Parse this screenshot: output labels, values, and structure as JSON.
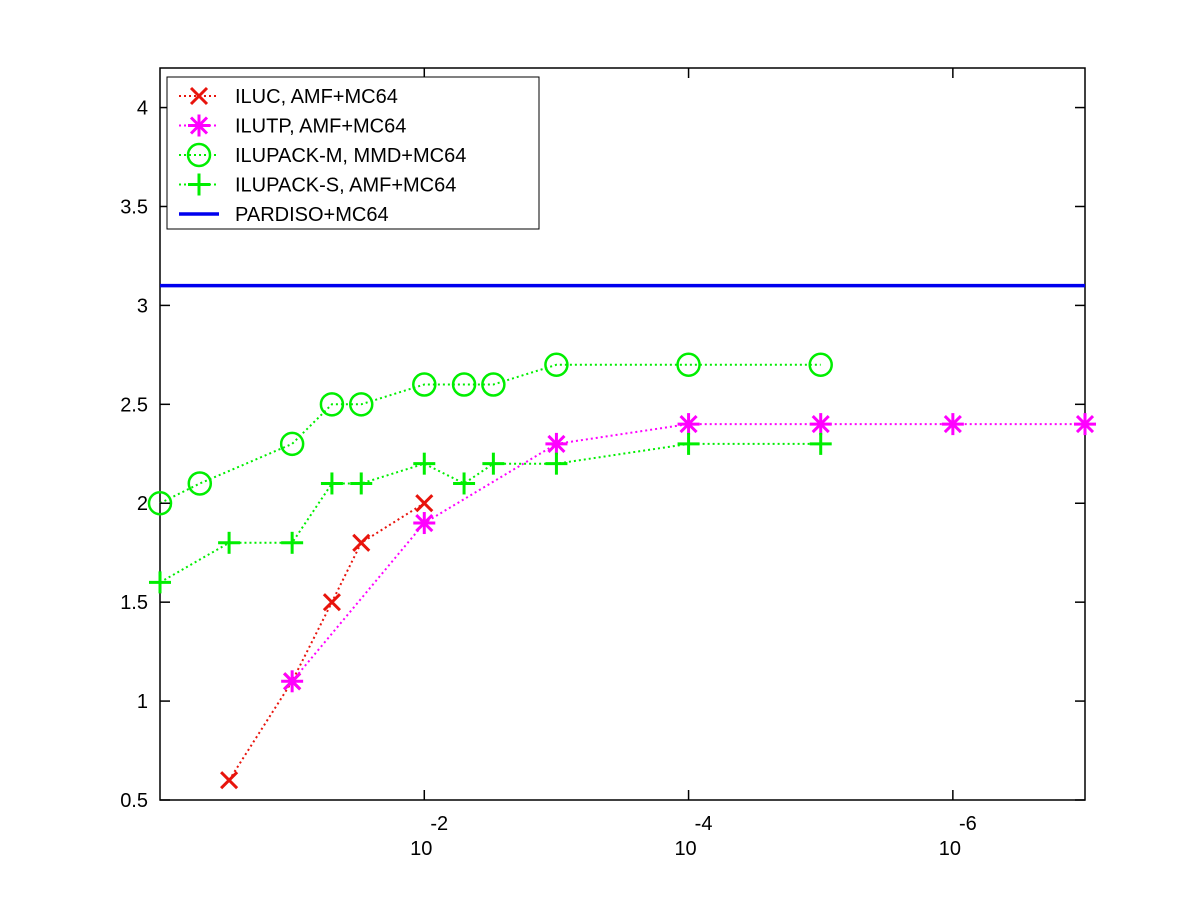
{
  "chart_data": {
    "type": "line",
    "title": "",
    "xlabel": "",
    "ylabel": "",
    "x_scale": "log",
    "x_reversed": true,
    "xlim": [
      1,
      1e-07
    ],
    "ylim": [
      0.5,
      4.2
    ],
    "y_ticks": [
      0.5,
      1,
      1.5,
      2,
      2.5,
      3,
      3.5,
      4
    ],
    "y_tick_labels": [
      "0.5",
      "1",
      "1.5",
      "2",
      "2.5",
      "3",
      "3.5",
      "4"
    ],
    "x_ticks": [
      {
        "value": 0.01,
        "base": "10",
        "exponent": "-2"
      },
      {
        "value": 0.0001,
        "base": "10",
        "exponent": "-4"
      },
      {
        "value": 1e-06,
        "base": "10",
        "exponent": "-6"
      }
    ],
    "grid": false,
    "legend_position": "top-left",
    "series": [
      {
        "name": "ILUC, AMF+MC64",
        "color": "#e8140c",
        "marker": "x",
        "line": "dotted",
        "x": [
          0.3,
          0.1,
          0.05,
          0.03,
          0.01
        ],
        "y": [
          0.6,
          1.1,
          1.5,
          1.8,
          2.0
        ]
      },
      {
        "name": "ILUTP, AMF+MC64",
        "color": "#ff00ff",
        "marker": "asterisk",
        "line": "dotted",
        "x": [
          0.1,
          0.01,
          0.001,
          0.0001,
          1e-05,
          1e-06,
          1e-07
        ],
        "y": [
          1.1,
          1.9,
          2.3,
          2.4,
          2.4,
          2.4,
          2.4
        ]
      },
      {
        "name": "ILUPACK-M, MMD+MC64",
        "color": "#00ee00",
        "marker": "circle",
        "line": "dotted",
        "x": [
          1,
          0.5,
          0.1,
          0.05,
          0.03,
          0.01,
          0.005,
          0.003,
          0.001,
          0.0001,
          1e-05
        ],
        "y": [
          2.0,
          2.1,
          2.3,
          2.5,
          2.5,
          2.6,
          2.6,
          2.6,
          2.7,
          2.7,
          2.7
        ]
      },
      {
        "name": "ILUPACK-S, AMF+MC64",
        "color": "#00ee00",
        "marker": "plus",
        "line": "dotted",
        "x": [
          1,
          0.3,
          0.1,
          0.05,
          0.03,
          0.01,
          0.005,
          0.003,
          0.001,
          0.0001,
          1e-05
        ],
        "y": [
          1.6,
          1.8,
          1.8,
          2.1,
          2.1,
          2.2,
          2.1,
          2.2,
          2.2,
          2.3,
          2.3
        ]
      },
      {
        "name": "PARDISO+MC64",
        "color": "#0000ee",
        "marker": "none",
        "line": "solid",
        "x": [
          1,
          1e-07
        ],
        "y": [
          3.1,
          3.1
        ]
      }
    ]
  }
}
